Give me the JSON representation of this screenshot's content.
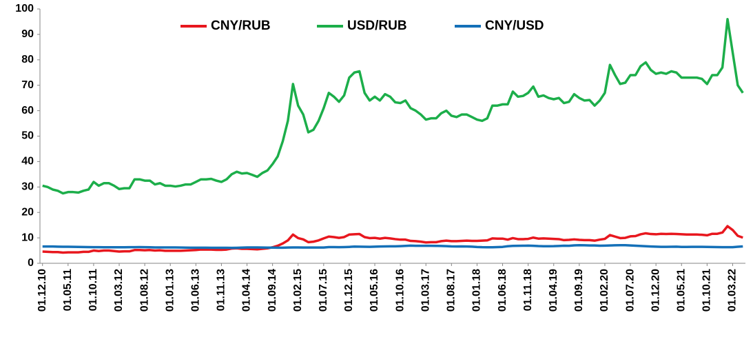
{
  "chart_data": {
    "type": "line",
    "categories": [
      "01.12.10",
      null,
      null,
      null,
      null,
      "01.05.11",
      null,
      null,
      null,
      null,
      "01.10.11",
      null,
      null,
      null,
      null,
      "01.03.12",
      null,
      null,
      null,
      null,
      "01.08.12",
      null,
      null,
      null,
      null,
      "01.01.13",
      null,
      null,
      null,
      null,
      "01.06.13",
      null,
      null,
      null,
      null,
      "01.11.13",
      null,
      null,
      null,
      null,
      "01.04.14",
      null,
      null,
      null,
      null,
      "01.09.14",
      null,
      null,
      null,
      null,
      "01.02.15",
      null,
      null,
      null,
      null,
      "01.07.15",
      null,
      null,
      null,
      null,
      "01.12.15",
      null,
      null,
      null,
      null,
      "01.05.16",
      null,
      null,
      null,
      null,
      "01.10.16",
      null,
      null,
      null,
      null,
      "01.03.17",
      null,
      null,
      null,
      null,
      "01.08.17",
      null,
      null,
      null,
      null,
      "01.01.18",
      null,
      null,
      null,
      null,
      "01.06.18",
      null,
      null,
      null,
      null,
      "01.11.18",
      null,
      null,
      null,
      null,
      "01.04.19",
      null,
      null,
      null,
      null,
      "01.09.19",
      null,
      null,
      null,
      null,
      "01.02.20",
      null,
      null,
      null,
      null,
      "01.07.20",
      null,
      null,
      null,
      null,
      "01.12.20",
      null,
      null,
      null,
      null,
      "01.05.21",
      null,
      null,
      null,
      null,
      "01.10.21",
      null,
      null,
      null,
      null,
      "01.03.22",
      null,
      null
    ],
    "series": [
      {
        "name": "CNY/RUB",
        "color": "#e8171e",
        "values": [
          4.6,
          4.5,
          4.4,
          4.4,
          4.2,
          4.3,
          4.3,
          4.3,
          4.5,
          4.5,
          5.0,
          4.8,
          5.0,
          5.0,
          4.8,
          4.6,
          4.7,
          4.7,
          5.2,
          5.2,
          5.1,
          5.2,
          5.0,
          5.1,
          4.9,
          4.9,
          4.9,
          4.9,
          5.0,
          5.1,
          5.2,
          5.4,
          5.4,
          5.4,
          5.3,
          5.3,
          5.4,
          5.8,
          5.9,
          5.7,
          5.7,
          5.6,
          5.5,
          5.7,
          5.9,
          6.3,
          6.9,
          7.8,
          9.0,
          11.3,
          9.9,
          9.4,
          8.3,
          8.5,
          9.0,
          9.8,
          10.5,
          10.3,
          10.0,
          10.3,
          11.3,
          11.4,
          11.5,
          10.3,
          9.9,
          10.0,
          9.7,
          10.0,
          9.8,
          9.5,
          9.3,
          9.3,
          8.8,
          8.7,
          8.5,
          8.2,
          8.3,
          8.3,
          8.7,
          8.9,
          8.7,
          8.7,
          8.8,
          8.9,
          8.8,
          8.8,
          8.9,
          9.0,
          9.8,
          9.7,
          9.7,
          9.3,
          9.9,
          9.5,
          9.5,
          9.6,
          10.1,
          9.7,
          9.8,
          9.7,
          9.6,
          9.5,
          9.1,
          9.2,
          9.4,
          9.2,
          9.1,
          9.1,
          8.9,
          9.3,
          9.6,
          11.1,
          10.5,
          9.9,
          10.0,
          10.6,
          10.7,
          11.4,
          11.8,
          11.5,
          11.4,
          11.6,
          11.5,
          11.6,
          11.5,
          11.4,
          11.3,
          11.3,
          11.3,
          11.2,
          11.0,
          11.6,
          11.6,
          12.1,
          14.6,
          13.1,
          10.8,
          10.1
        ]
      },
      {
        "name": "USD/RUB",
        "color": "#1cae4a",
        "values": [
          30.5,
          30,
          29,
          28.5,
          27.5,
          28,
          28,
          27.8,
          28.5,
          29,
          32,
          30.5,
          31.5,
          31.5,
          30.5,
          29.2,
          29.5,
          29.5,
          33,
          33,
          32.5,
          32.5,
          31,
          31.5,
          30.5,
          30.5,
          30.2,
          30.5,
          31,
          31,
          32,
          33,
          33,
          33.2,
          32.5,
          32,
          33,
          35,
          36,
          35.3,
          35.5,
          34.8,
          34,
          35.5,
          36.5,
          39,
          42,
          48,
          56,
          70.5,
          62,
          58.5,
          51.5,
          52.5,
          56,
          61,
          67,
          65.5,
          63.5,
          66,
          73,
          75,
          75.5,
          67,
          64,
          65.5,
          64,
          66.5,
          65.5,
          63.3,
          63,
          64,
          61,
          60,
          58.5,
          56.5,
          57,
          57,
          59,
          60,
          58,
          57.5,
          58.5,
          58.5,
          57.5,
          56.5,
          56,
          57,
          62,
          62,
          62.5,
          62.5,
          67.5,
          65.5,
          65.8,
          67,
          69.5,
          65.5,
          66,
          65,
          64.5,
          65,
          63,
          63.5,
          66.5,
          65,
          64,
          64.2,
          62,
          64,
          67,
          78,
          74,
          70.5,
          71,
          74,
          74,
          77.5,
          79,
          76,
          74.5,
          75,
          74.5,
          75.5,
          75,
          73,
          73,
          73,
          73,
          72.5,
          70.5,
          74,
          74,
          77,
          96,
          83,
          70,
          67
        ]
      },
      {
        "name": "CNY/USD",
        "color": "#1470b8",
        "values": [
          6.6,
          6.6,
          6.6,
          6.55,
          6.5,
          6.5,
          6.47,
          6.45,
          6.4,
          6.38,
          6.35,
          6.35,
          6.3,
          6.3,
          6.3,
          6.3,
          6.3,
          6.32,
          6.35,
          6.37,
          6.35,
          6.3,
          6.25,
          6.23,
          6.23,
          6.22,
          6.22,
          6.2,
          6.17,
          6.13,
          6.13,
          6.13,
          6.12,
          6.11,
          6.1,
          6.09,
          6.08,
          6.06,
          6.1,
          6.15,
          6.23,
          6.25,
          6.22,
          6.2,
          6.15,
          6.15,
          6.12,
          6.13,
          6.2,
          6.23,
          6.25,
          6.2,
          6.2,
          6.2,
          6.2,
          6.2,
          6.36,
          6.37,
          6.35,
          6.38,
          6.45,
          6.56,
          6.55,
          6.5,
          6.48,
          6.55,
          6.6,
          6.65,
          6.67,
          6.67,
          6.75,
          6.85,
          6.93,
          6.88,
          6.87,
          6.89,
          6.89,
          6.85,
          6.8,
          6.75,
          6.65,
          6.6,
          6.63,
          6.6,
          6.55,
          6.4,
          6.32,
          6.3,
          6.3,
          6.37,
          6.45,
          6.7,
          6.83,
          6.87,
          6.9,
          6.95,
          6.88,
          6.77,
          6.72,
          6.7,
          6.73,
          6.82,
          6.9,
          6.88,
          7.05,
          7.1,
          7.07,
          7.02,
          7.0,
          6.9,
          6.95,
          7.0,
          7.07,
          7.1,
          7.1,
          7.0,
          6.92,
          6.8,
          6.7,
          6.6,
          6.54,
          6.47,
          6.46,
          6.5,
          6.53,
          6.43,
          6.45,
          6.47,
          6.47,
          6.46,
          6.42,
          6.39,
          6.37,
          6.35,
          6.33,
          6.35,
          6.5,
          6.65
        ]
      }
    ],
    "ylim": [
      0,
      100
    ],
    "yticks": [
      0,
      10,
      20,
      30,
      40,
      50,
      60,
      70,
      80,
      90,
      100
    ],
    "legend": "top"
  }
}
